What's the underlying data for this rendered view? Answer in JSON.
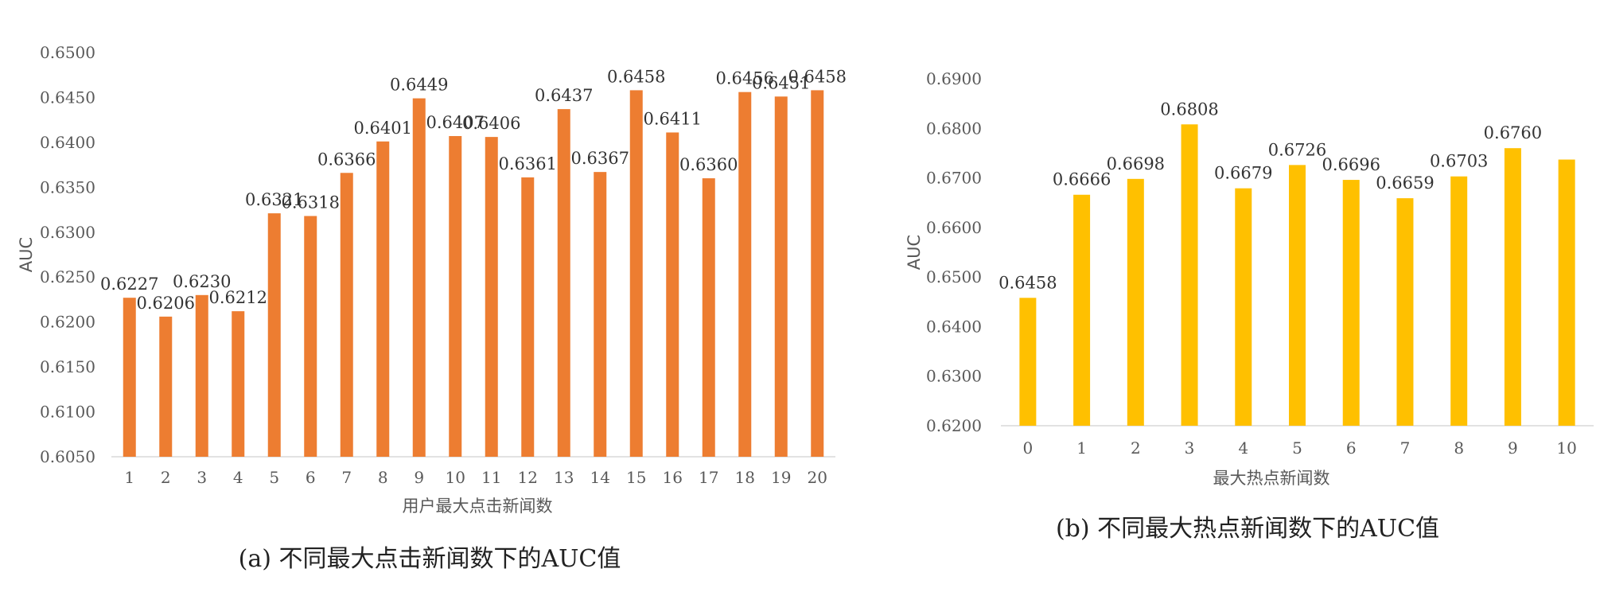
{
  "chart_data": [
    {
      "type": "bar",
      "caption": "(a) 不同最大点击新闻数下的AUC值",
      "xlabel": "用户最大点击新闻数",
      "ylabel": "AUC",
      "ylim": [
        0.605,
        0.65
      ],
      "ytick_step": 0.005,
      "yticks": [
        "0.6050",
        "0.6100",
        "0.6150",
        "0.6200",
        "0.6250",
        "0.6300",
        "0.6350",
        "0.6400",
        "0.6450",
        "0.6500"
      ],
      "categories": [
        "1",
        "2",
        "3",
        "4",
        "5",
        "6",
        "7",
        "8",
        "9",
        "10",
        "11",
        "12",
        "13",
        "14",
        "15",
        "16",
        "17",
        "18",
        "19",
        "20"
      ],
      "values": [
        0.6227,
        0.6206,
        0.623,
        0.6212,
        0.6321,
        0.6318,
        0.6366,
        0.6401,
        0.6449,
        0.6407,
        0.6406,
        0.6361,
        0.6437,
        0.6367,
        0.6458,
        0.6411,
        0.636,
        0.6456,
        0.6451,
        0.6458
      ],
      "labels": [
        "0.6227",
        "0.6206",
        "0.6230",
        "0.6212",
        "0.6321",
        "0.6318",
        "0.6366",
        "0.6401",
        "0.6449",
        "0.6407",
        "0.6406",
        "0.6361",
        "0.6437",
        "0.6367",
        "0.6458",
        "0.6411",
        "0.6360",
        "0.6456",
        "0.6451",
        "0.6458"
      ],
      "color": "#ED7D31",
      "grid": false,
      "legend": "none"
    },
    {
      "type": "bar",
      "caption": "(b) 不同最大热点新闻数下的AUC值",
      "xlabel": "最大热点新闻数",
      "ylabel": "AUC",
      "ylim": [
        0.62,
        0.69
      ],
      "ytick_step": 0.01,
      "yticks": [
        "0.6200",
        "0.6300",
        "0.6400",
        "0.6500",
        "0.6600",
        "0.6700",
        "0.6800",
        "0.6900"
      ],
      "categories": [
        "0",
        "1",
        "2",
        "3",
        "4",
        "5",
        "6",
        "7",
        "8",
        "9",
        "10"
      ],
      "values": [
        0.6458,
        0.6666,
        0.6698,
        0.6808,
        0.6679,
        0.6726,
        0.6696,
        0.6659,
        0.6703,
        0.676,
        0.6737
      ],
      "labels": [
        "0.6458",
        "0.6666",
        "0.6698",
        "0.6808",
        "0.6679",
        "0.6726",
        "0.6696",
        "0.6659",
        "0.6703",
        "0.6760",
        ""
      ],
      "color": "#FFC000",
      "grid": false,
      "legend": "none"
    }
  ]
}
